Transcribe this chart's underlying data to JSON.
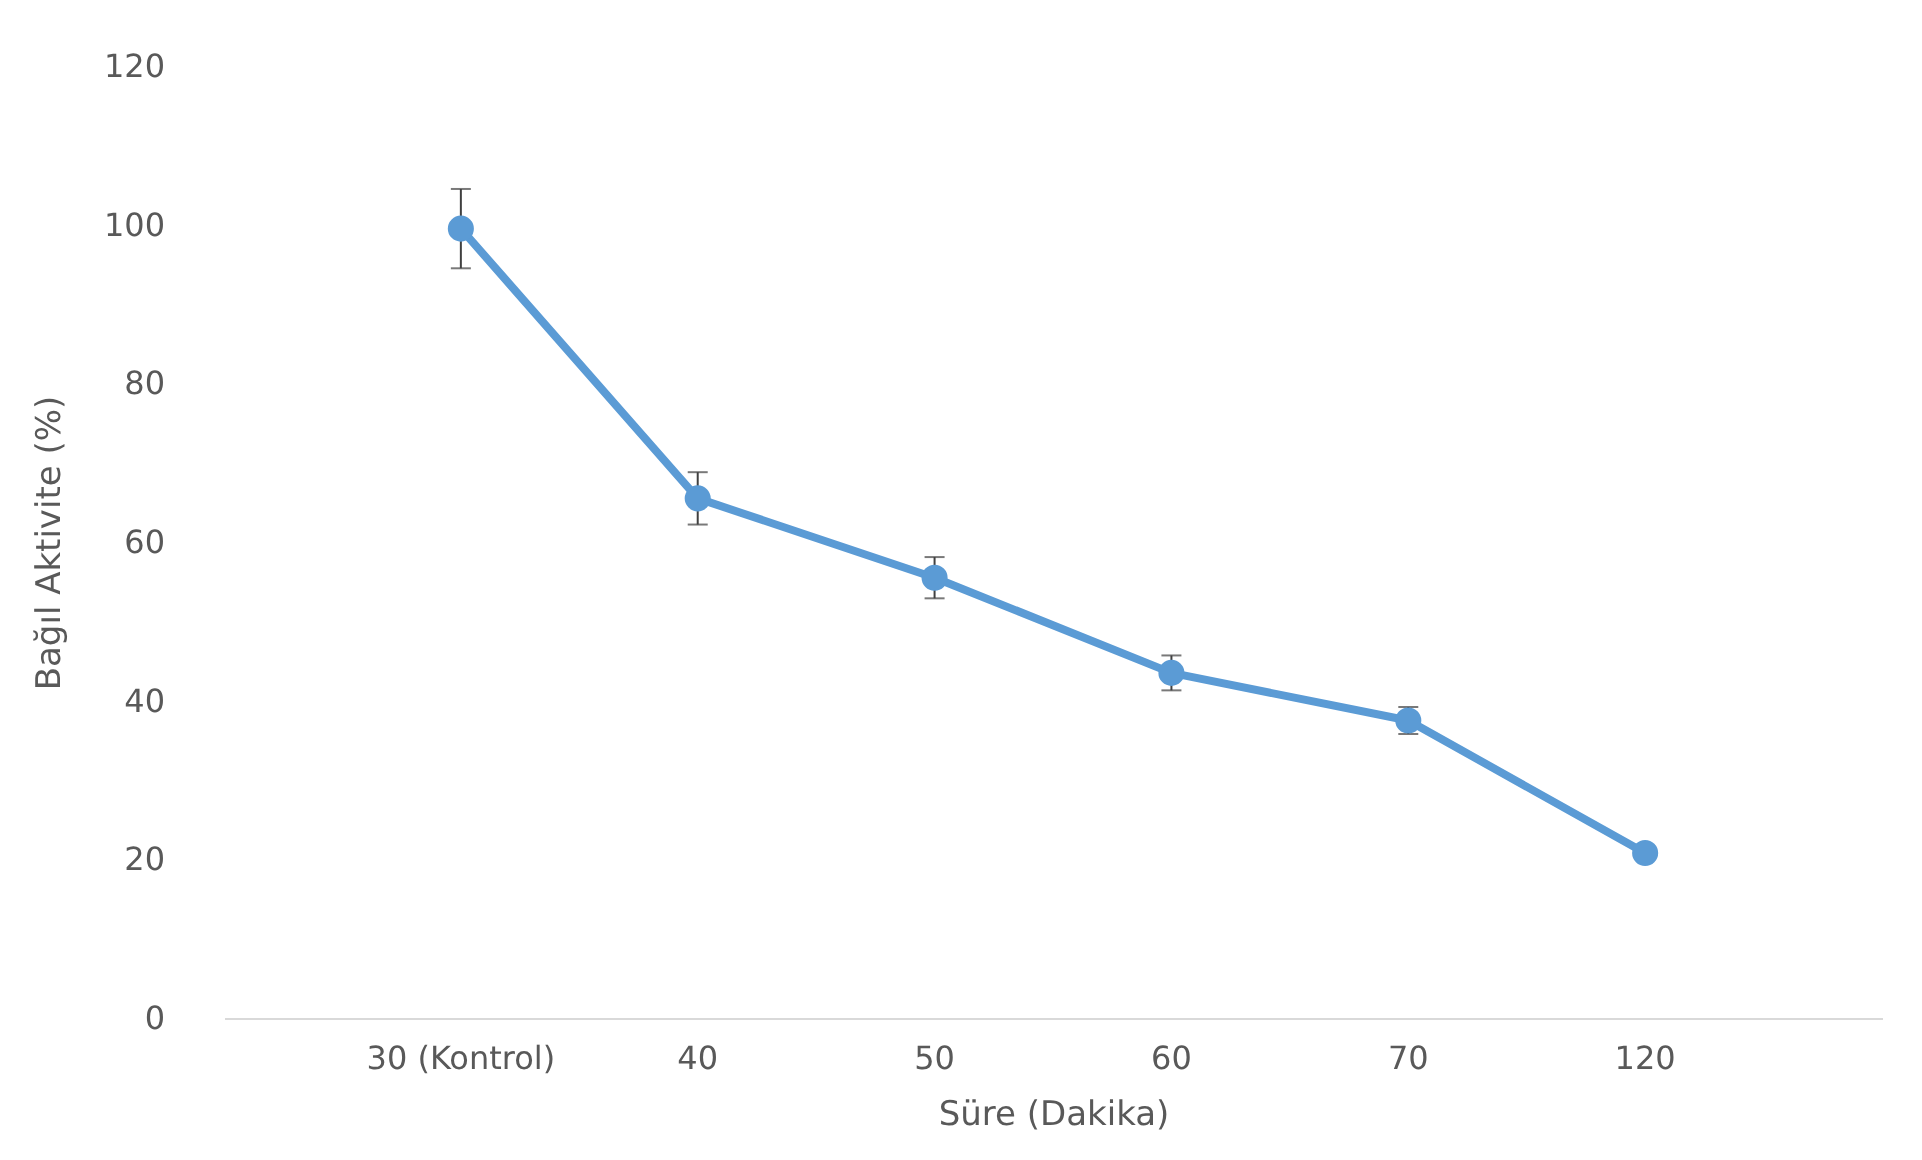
{
  "chart_data": {
    "type": "line",
    "xlabel": "Süre (Dakika)",
    "ylabel": "Bağıl Aktivite (%)",
    "categories": [
      "30 (Kontrol)",
      "40",
      "50",
      "60",
      "70",
      "120"
    ],
    "series": [
      {
        "color": "#5b9bd5",
        "values": [
          99.5,
          65.5,
          55.5,
          43.5,
          37.5,
          20.8
        ],
        "errors": [
          5,
          3.3,
          2.6,
          2.2,
          1.7,
          null
        ]
      }
    ],
    "ylim": [
      0,
      120
    ],
    "yticks": [
      0,
      20,
      40,
      60,
      80,
      100,
      120
    ],
    "grid": false,
    "marker": "circle",
    "line_style": "solid",
    "legend": false
  }
}
